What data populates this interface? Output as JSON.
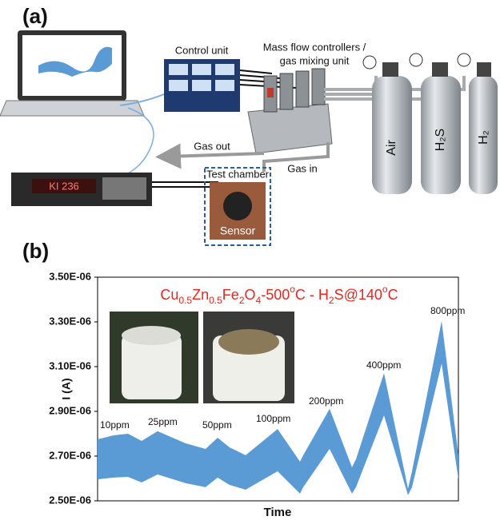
{
  "panel_a": {
    "label": "(a)",
    "control_unit": "Control unit",
    "mfc": [
      "Mass flow controllers /",
      "gas mixing unit"
    ],
    "cylinders": [
      "Air",
      "H₂S",
      "H₂"
    ],
    "gas_out": "Gas out",
    "gas_in": "Gas in",
    "test_chamber": "Test chamber",
    "sensor": "Sensor",
    "instrument": "KI 236"
  },
  "chart_data": {
    "type": "band",
    "panel_label": "(b)",
    "title": [
      {
        "text": "Cu"
      },
      {
        "text": "0.5",
        "sub": true
      },
      {
        "text": "Zn"
      },
      {
        "text": "0.5",
        "sub": true
      },
      {
        "text": "Fe"
      },
      {
        "text": "2",
        "sub": true
      },
      {
        "text": "O"
      },
      {
        "text": "4",
        "sub": true
      },
      {
        "text": "-500"
      },
      {
        "text": "o",
        "sup": true
      },
      {
        "text": "C - H"
      },
      {
        "text": "2",
        "sub": true
      },
      {
        "text": "S@140"
      },
      {
        "text": "o",
        "sup": true
      },
      {
        "text": "C"
      }
    ],
    "title_color": "#e8261c",
    "ylabel": "I (A)",
    "xlabel": "Time",
    "x": [
      0,
      20,
      38,
      55,
      75,
      110,
      135,
      150,
      165,
      185,
      225,
      253,
      257,
      290,
      318,
      323,
      358,
      388,
      393,
      430,
      451
    ],
    "upper": [
      2.775e-06,
      2.793e-06,
      2.8e-06,
      2.768e-06,
      2.811e-06,
      2.757e-06,
      2.732e-06,
      2.782e-06,
      2.739e-06,
      2.704e-06,
      2.821e-06,
      2.675e-06,
      2.704e-06,
      2.911e-06,
      2.65e-06,
      2.686e-06,
      3.071e-06,
      2.554e-06,
      2.632e-06,
      3.304e-06,
      2.704e-06
    ],
    "lower": [
      2.596e-06,
      2.604e-06,
      2.607e-06,
      2.582e-06,
      2.618e-06,
      2.579e-06,
      2.561e-06,
      2.604e-06,
      2.571e-06,
      2.55e-06,
      2.632e-06,
      2.532e-06,
      2.561e-06,
      2.732e-06,
      2.532e-06,
      2.561e-06,
      2.882e-06,
      2.525e-06,
      2.561e-06,
      3.114e-06,
      2.596e-06
    ],
    "color": "#5b9bd5",
    "xlim": [
      0,
      451
    ],
    "ylim": [
      2.5e-06,
      3.5e-06
    ],
    "yticks": [
      {
        "value": 3.5e-06,
        "label": "3.50E-06"
      },
      {
        "value": 3.3e-06,
        "label": "3.30E-06"
      },
      {
        "value": 3.1e-06,
        "label": "3.10E-06"
      },
      {
        "value": 2.9e-06,
        "label": "2.90E-06"
      },
      {
        "value": 2.7e-06,
        "label": "2.70E-06"
      },
      {
        "value": 2.5e-06,
        "label": "2.50E-06"
      }
    ],
    "annotations": [
      "10ppm",
      "25ppm",
      "50ppm",
      "100ppm",
      "200ppm",
      "400ppm",
      "800ppm"
    ]
  }
}
